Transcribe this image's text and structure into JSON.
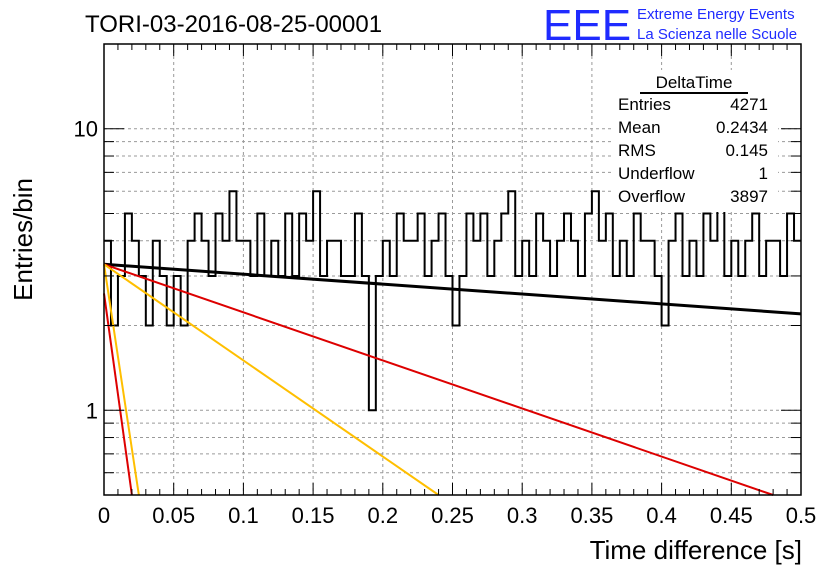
{
  "chart_data": {
    "type": "line",
    "title": "TORI-03-2016-08-25-00001",
    "xlabel": "Time difference [s]",
    "ylabel": "Entries/bin",
    "xlim": [
      0,
      0.5
    ],
    "ylim": [
      0.5,
      20
    ],
    "yscale": "log",
    "grid": true,
    "x_ticks": [
      "0",
      "0.05",
      "0.1",
      "0.15",
      "0.2",
      "0.25",
      "0.3",
      "0.35",
      "0.4",
      "0.45",
      "0.5"
    ],
    "y_ticks": [
      "1",
      "10"
    ],
    "histogram": {
      "name": "DeltaTime",
      "bin_width": 0.005,
      "counts": [
        4,
        2,
        3,
        5,
        4,
        3,
        2,
        4,
        3,
        2,
        3,
        2,
        4,
        5,
        4,
        3,
        5,
        4,
        6,
        4,
        4,
        3,
        5,
        3,
        4,
        3,
        5,
        3,
        5,
        4,
        6,
        3,
        4,
        4,
        3,
        3,
        5,
        3,
        1,
        3,
        4,
        3,
        5,
        4,
        4,
        5,
        3,
        4,
        5,
        3,
        2,
        3,
        5,
        4,
        5,
        3,
        4,
        5,
        6,
        3,
        4,
        3,
        5,
        4,
        3,
        4,
        5,
        4,
        3,
        5,
        6,
        4,
        5,
        3,
        4,
        3,
        5,
        4,
        4,
        3,
        2,
        4,
        5,
        3,
        4,
        3,
        5,
        4,
        6,
        3,
        4,
        3,
        4,
        5,
        3,
        4,
        4,
        3,
        5,
        4
      ]
    },
    "series": [
      {
        "name": "",
        "color": "#000000",
        "x": [
          0,
          0.5
        ],
        "y": [
          3.3,
          2.2
        ]
      },
      {
        "name": "",
        "color": "#dd0000",
        "x": [
          0,
          0.48
        ],
        "y": [
          3.3,
          0.5
        ]
      },
      {
        "name": "",
        "color": "#ffbf00",
        "x": [
          0,
          0.24
        ],
        "y": [
          3.3,
          0.5
        ]
      },
      {
        "name": "",
        "color": "#ffbf00",
        "x": [
          0,
          0.025
        ],
        "y": [
          3.3,
          0.5
        ]
      },
      {
        "name": "",
        "color": "#dd0000",
        "x": [
          0,
          0.02
        ],
        "y": [
          2.6,
          0.5
        ]
      }
    ],
    "stats_box": {
      "title": "DeltaTime",
      "rows": [
        {
          "label": "Entries",
          "value": "4271"
        },
        {
          "label": "Mean",
          "value": "0.2434"
        },
        {
          "label": "RMS",
          "value": "0.145"
        },
        {
          "label": "Underflow",
          "value": "1"
        },
        {
          "label": "Overflow",
          "value": "3897"
        }
      ]
    }
  },
  "logo": {
    "mark": "EEE",
    "line1": "Extreme Energy Events",
    "line2": "La Scienza nelle Scuole"
  }
}
